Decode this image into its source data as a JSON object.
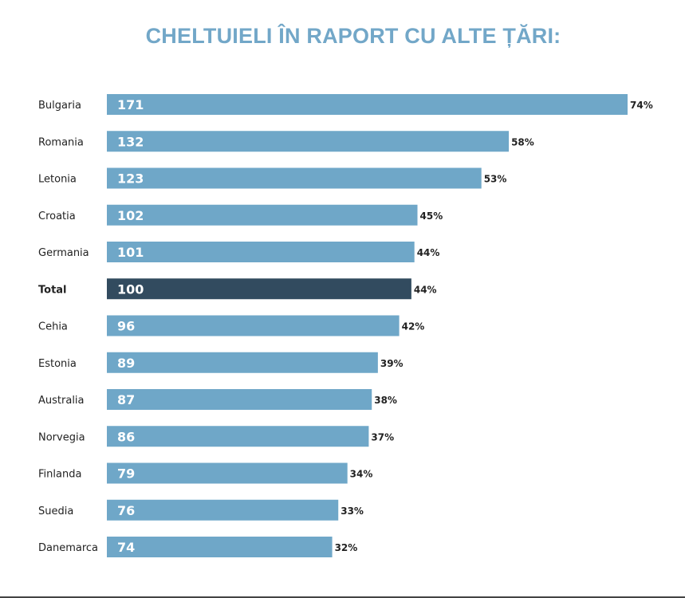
{
  "chart_data": {
    "type": "bar",
    "orientation": "horizontal",
    "title": "CHELTUIELI ÎN RAPORT CU ALTE ȚĂRI:",
    "categories": [
      "Bulgaria",
      "Romania",
      "Letonia",
      "Croatia",
      "Germania",
      "Total",
      "Cehia",
      "Estonia",
      "Australia",
      "Norvegia",
      "Finlanda",
      "Suedia",
      "Danemarca"
    ],
    "values": [
      171,
      132,
      123,
      102,
      101,
      100,
      96,
      89,
      87,
      86,
      79,
      76,
      74
    ],
    "percent_labels": [
      "74%",
      "58%",
      "53%",
      "45%",
      "44%",
      "44%",
      "42%",
      "39%",
      "38%",
      "37%",
      "34%",
      "33%",
      "32%"
    ],
    "highlight": "Total",
    "xlim": [
      0,
      171
    ],
    "grid": false,
    "legend": "none",
    "colors": {
      "bar": "#6fa7c8",
      "highlight": "#324b5f",
      "title": "#72a7c8",
      "bar_text": "#ffffff",
      "label_text": "#222222"
    }
  }
}
